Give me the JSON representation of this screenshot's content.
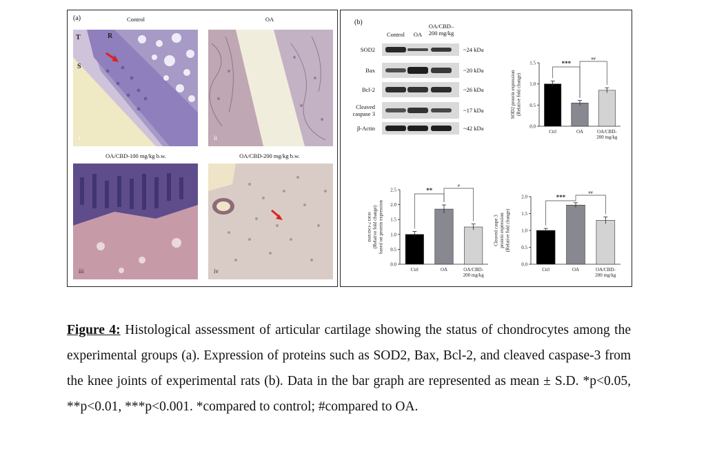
{
  "panel_a": {
    "label": "(a)",
    "images": [
      {
        "title": "Control",
        "roman": "i",
        "markers": [
          "T",
          "R",
          "S"
        ]
      },
      {
        "title": "OA",
        "roman": "ii"
      },
      {
        "title": "OA/CBD-100 mg/kg b.w.",
        "roman": "iii"
      },
      {
        "title": "OA/CBD-200 mg/kg b.w.",
        "roman": "iv"
      }
    ]
  },
  "panel_b": {
    "label": "(b)",
    "western_blot": {
      "columns": [
        "Control",
        "OA",
        "OA/CBD–\n200 mg/kg"
      ],
      "rows": [
        {
          "name": "SOD2",
          "kda": "~24 kDa",
          "intensity": [
            0.9,
            0.6,
            0.75
          ]
        },
        {
          "name": "Bax",
          "kda": "~20 kDa",
          "intensity": [
            0.55,
            1.0,
            0.75
          ]
        },
        {
          "name": "Bcl-2",
          "kda": "~26 kDa",
          "intensity": [
            0.85,
            0.8,
            0.85
          ]
        },
        {
          "name": "Cleaved\ncaspase 3",
          "kda": "~17 kDa",
          "intensity": [
            0.5,
            0.8,
            0.6
          ]
        },
        {
          "name": "β-Actin",
          "kda": "~42 kDa",
          "intensity": [
            1.0,
            1.0,
            1.0
          ]
        }
      ]
    }
  },
  "chart_data": [
    {
      "type": "bar",
      "categories": [
        "Ctrl",
        "OA",
        "OA/CBD-\n200 mg/kg"
      ],
      "values": [
        1.0,
        0.55,
        0.85
      ],
      "errors": [
        0.07,
        0.06,
        0.06
      ],
      "colors": [
        "#000000",
        "#888890",
        "#d3d3d3"
      ],
      "ylabel": "SOD2 protein expression\n(Relative fold change)",
      "ylim": [
        0,
        1.5
      ],
      "yticks": [
        "0.0",
        "0.5",
        "1.0",
        "1.5"
      ],
      "significance": [
        {
          "from": 0,
          "to": 1,
          "label": "***"
        },
        {
          "from": 1,
          "to": 2,
          "label": "##"
        }
      ]
    },
    {
      "type": "bar",
      "categories": [
        "Ctrl",
        "OA",
        "OA/CBD-\n200 mg/kg"
      ],
      "values": [
        1.0,
        1.85,
        1.25
      ],
      "errors": [
        0.1,
        0.14,
        0.1
      ],
      "colors": [
        "#000000",
        "#888890",
        "#d3d3d3"
      ],
      "ylabel": "Bax/Bcl-2 ratio\n(Relative fold change)\nbased on protein expression",
      "ylim": [
        0,
        2.5
      ],
      "yticks": [
        "0.0",
        "0.5",
        "1.0",
        "1.5",
        "2.0",
        "2.5"
      ],
      "significance": [
        {
          "from": 0,
          "to": 1,
          "label": "**"
        },
        {
          "from": 1,
          "to": 2,
          "label": "#"
        }
      ]
    },
    {
      "type": "bar",
      "categories": [
        "Ctrl",
        "OA",
        "OA/CBD-\n200 mg/kg"
      ],
      "values": [
        1.0,
        1.75,
        1.3
      ],
      "errors": [
        0.06,
        0.07,
        0.1
      ],
      "colors": [
        "#000000",
        "#888890",
        "#d3d3d3"
      ],
      "ylabel": "Cleaved caspe 3\nprotein expression\n(Relative fold change)",
      "ylim": [
        0,
        2.0
      ],
      "yticks": [
        "0.0",
        "0.5",
        "1.0",
        "1.5",
        "2.0"
      ],
      "significance": [
        {
          "from": 0,
          "to": 1,
          "label": "***"
        },
        {
          "from": 1,
          "to": 2,
          "label": "##"
        }
      ]
    }
  ],
  "caption": {
    "lead": "Figure 4:",
    "text": " Histological assessment of articular cartilage showing the status of chondrocytes among the experimental groups (a). Expression of proteins such as SOD2, Bax, Bcl-2, and cleaved caspase-3 from the knee joints of experimental rats (b). Data in the bar graph are represented as mean ± S.D. *p<0.05, **p<0.01, ***p<0.001. *compared to control; #compared to OA."
  }
}
